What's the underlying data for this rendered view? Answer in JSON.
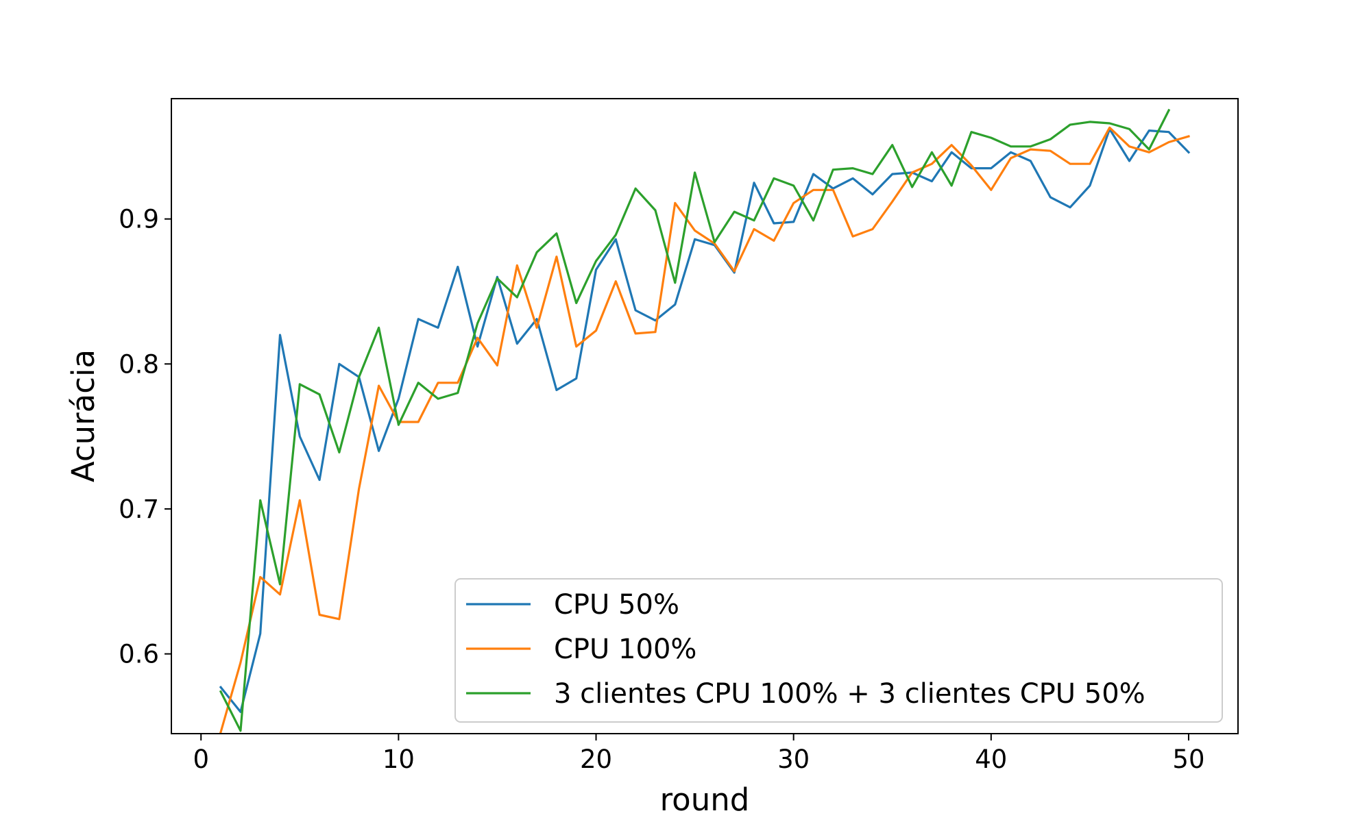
{
  "chart_data": {
    "type": "line",
    "title": "",
    "xlabel": "round",
    "ylabel": "Acurácia",
    "xlim": [
      -1.5,
      52.5
    ],
    "ylim": [
      0.545,
      0.983
    ],
    "xticks": [
      0,
      10,
      20,
      30,
      40,
      50
    ],
    "xtick_labels": [
      "0",
      "10",
      "20",
      "30",
      "40",
      "50"
    ],
    "yticks": [
      0.6,
      0.7,
      0.8,
      0.9
    ],
    "ytick_labels": [
      "0.6",
      "0.7",
      "0.8",
      "0.9"
    ],
    "grid": false,
    "legend_position": "lower-right",
    "series": [
      {
        "name": "CPU 50%",
        "color": "#1f77b4",
        "x": [
          1,
          2,
          3,
          4,
          5,
          6,
          7,
          8,
          9,
          10,
          11,
          12,
          13,
          14,
          15,
          16,
          17,
          18,
          19,
          20,
          21,
          22,
          23,
          24,
          25,
          26,
          27,
          28,
          29,
          30,
          31,
          32,
          33,
          34,
          35,
          36,
          37,
          38,
          39,
          40,
          41,
          42,
          43,
          44,
          45,
          46,
          47,
          48,
          49,
          50
        ],
        "y": [
          0.577,
          0.56,
          0.614,
          0.82,
          0.75,
          0.72,
          0.8,
          0.791,
          0.74,
          0.776,
          0.831,
          0.825,
          0.867,
          0.812,
          0.86,
          0.814,
          0.831,
          0.782,
          0.79,
          0.865,
          0.886,
          0.837,
          0.83,
          0.841,
          0.886,
          0.882,
          0.863,
          0.925,
          0.897,
          0.898,
          0.931,
          0.921,
          0.928,
          0.917,
          0.931,
          0.932,
          0.926,
          0.946,
          0.935,
          0.935,
          0.946,
          0.94,
          0.915,
          0.908,
          0.923,
          0.962,
          0.94,
          0.961,
          0.96,
          0.946
        ]
      },
      {
        "name": "CPU 100%",
        "color": "#ff7f0e",
        "x": [
          1,
          2,
          3,
          4,
          5,
          6,
          7,
          8,
          9,
          10,
          11,
          12,
          13,
          14,
          15,
          16,
          17,
          18,
          19,
          20,
          21,
          22,
          23,
          24,
          25,
          26,
          27,
          28,
          29,
          30,
          31,
          32,
          33,
          34,
          35,
          36,
          37,
          38,
          39,
          40,
          41,
          42,
          43,
          44,
          45,
          46,
          47,
          48,
          49,
          50
        ],
        "y": [
          0.546,
          0.594,
          0.653,
          0.641,
          0.706,
          0.627,
          0.624,
          0.714,
          0.785,
          0.76,
          0.76,
          0.787,
          0.787,
          0.818,
          0.799,
          0.868,
          0.825,
          0.874,
          0.812,
          0.823,
          0.857,
          0.821,
          0.822,
          0.911,
          0.892,
          0.883,
          0.864,
          0.893,
          0.885,
          0.911,
          0.92,
          0.92,
          0.888,
          0.893,
          0.912,
          0.932,
          0.938,
          0.951,
          0.937,
          0.92,
          0.942,
          0.948,
          0.947,
          0.938,
          0.938,
          0.963,
          0.95,
          0.946,
          0.953,
          0.957
        ]
      },
      {
        "name": "3 clientes CPU 100% + 3 clientes CPU 50%",
        "color": "#2ca02c",
        "x": [
          1,
          2,
          3,
          4,
          5,
          6,
          7,
          8,
          9,
          10,
          11,
          12,
          13,
          14,
          15,
          16,
          17,
          18,
          19,
          20,
          21,
          22,
          23,
          24,
          25,
          26,
          27,
          28,
          29,
          30,
          31,
          32,
          33,
          34,
          35,
          36,
          37,
          38,
          39,
          40,
          41,
          42,
          43,
          44,
          45,
          46,
          47,
          48,
          49
        ],
        "y": [
          0.574,
          0.547,
          0.706,
          0.648,
          0.786,
          0.779,
          0.739,
          0.791,
          0.825,
          0.758,
          0.787,
          0.776,
          0.78,
          0.828,
          0.859,
          0.846,
          0.877,
          0.89,
          0.842,
          0.871,
          0.889,
          0.921,
          0.906,
          0.856,
          0.932,
          0.884,
          0.905,
          0.899,
          0.928,
          0.923,
          0.899,
          0.934,
          0.935,
          0.931,
          0.951,
          0.922,
          0.946,
          0.923,
          0.96,
          0.956,
          0.95,
          0.95,
          0.955,
          0.965,
          0.967,
          0.966,
          0.962,
          0.948,
          0.975
        ]
      }
    ]
  }
}
